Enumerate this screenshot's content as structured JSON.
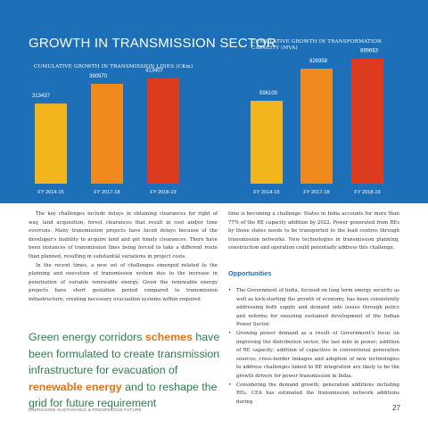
{
  "section_title": "GROWTH IN TRANSMISSION SECTOR",
  "chart_data": [
    {
      "type": "bar",
      "title": "CUMULATIVE GROWTH IN TRANSMISSION LINES (CKm)",
      "categories": [
        "FY 2014-15",
        "FY 2017-18",
        "FY 2018-19"
      ],
      "values": [
        313437,
        390970,
        413407
      ],
      "value_labels": [
        "313437",
        "390970",
        "413407"
      ],
      "ylim": [
        0,
        520000
      ],
      "colors": [
        "#f2b51c",
        "#f08a1c",
        "#dc3b1e"
      ]
    },
    {
      "type": "bar",
      "title": "CUMULATIVE GROWTH IN TRANSFORMATION CAPACITY (MVA)",
      "categories": [
        "FY 2014-15",
        "FY 2017-18",
        "FY 2018-19"
      ],
      "values": [
        596100,
        826958,
        899663
      ],
      "value_labels": [
        "596100",
        "826958",
        "899663"
      ],
      "ylim": [
        0,
        1000000
      ],
      "colors": [
        "#f2b51c",
        "#f08a1c",
        "#dc3b1e"
      ]
    }
  ],
  "left_column": {
    "paragraphs": [
      "The key challenges include delays in obtaining clearances for right of way, land acquisition, forest clearances that result in cost and/or time overruns. Many transmission projects have faced delays because of the developer's inability to acquire land and get timely clearances. There have been instances of transmission lines being forced to take a different route than planned, resulting in substantial variations in project costs.",
      "In the recent times, a new set of challenges emerged related to the planning and execution of transmission system due to the increase in penetration of variable renewable energy. Given the renewable energy projects have short gestation period compared to transmission infrastructure, creating necessary evacuation systems within required"
    ]
  },
  "pull_quote": {
    "part1": "Green energy corridors ",
    "highlight1": "schemes",
    "part2": " have been formulated to create transmission infrastructure for evacuation of ",
    "highlight2": "renewable energy",
    "part3": " and to reshape the grid for future requirement"
  },
  "right_column": {
    "intro": "time is becoming a challenge. States in India accounts for more than 77% of the RE capacity addition by 2022. Power generated from REs by these states needs to be transported to the load centres through transmission networks. New technologies in transmission planning, construction and operation could potentially address this challenge.",
    "opportunities_heading": "Opportunities",
    "bullets": [
      "The Government of India, focused on long term energy security as well as kick-starting the growth of economy, has been consistently addressing both supply and demand side issues through policy and reforms for ensuring sustained development of the Indian Power Sector.",
      "Growing power demand as a result of Government's focus on improving the distribution sector, the last mile in power; addition of RE capacity; addition of capacities in conventional generation sources; cross-border linkages and adoption of new technologies to address challenges linked to RE integration are likely to be the growth drivers for power transmission in India.",
      "Considering the demand growth, generation additions including REs, CEA has estimated the transmission network additions during"
    ]
  },
  "footer": "ENERGISING SUSTAINABLE & PROSPEROUS FUTURE",
  "page_number": "27"
}
